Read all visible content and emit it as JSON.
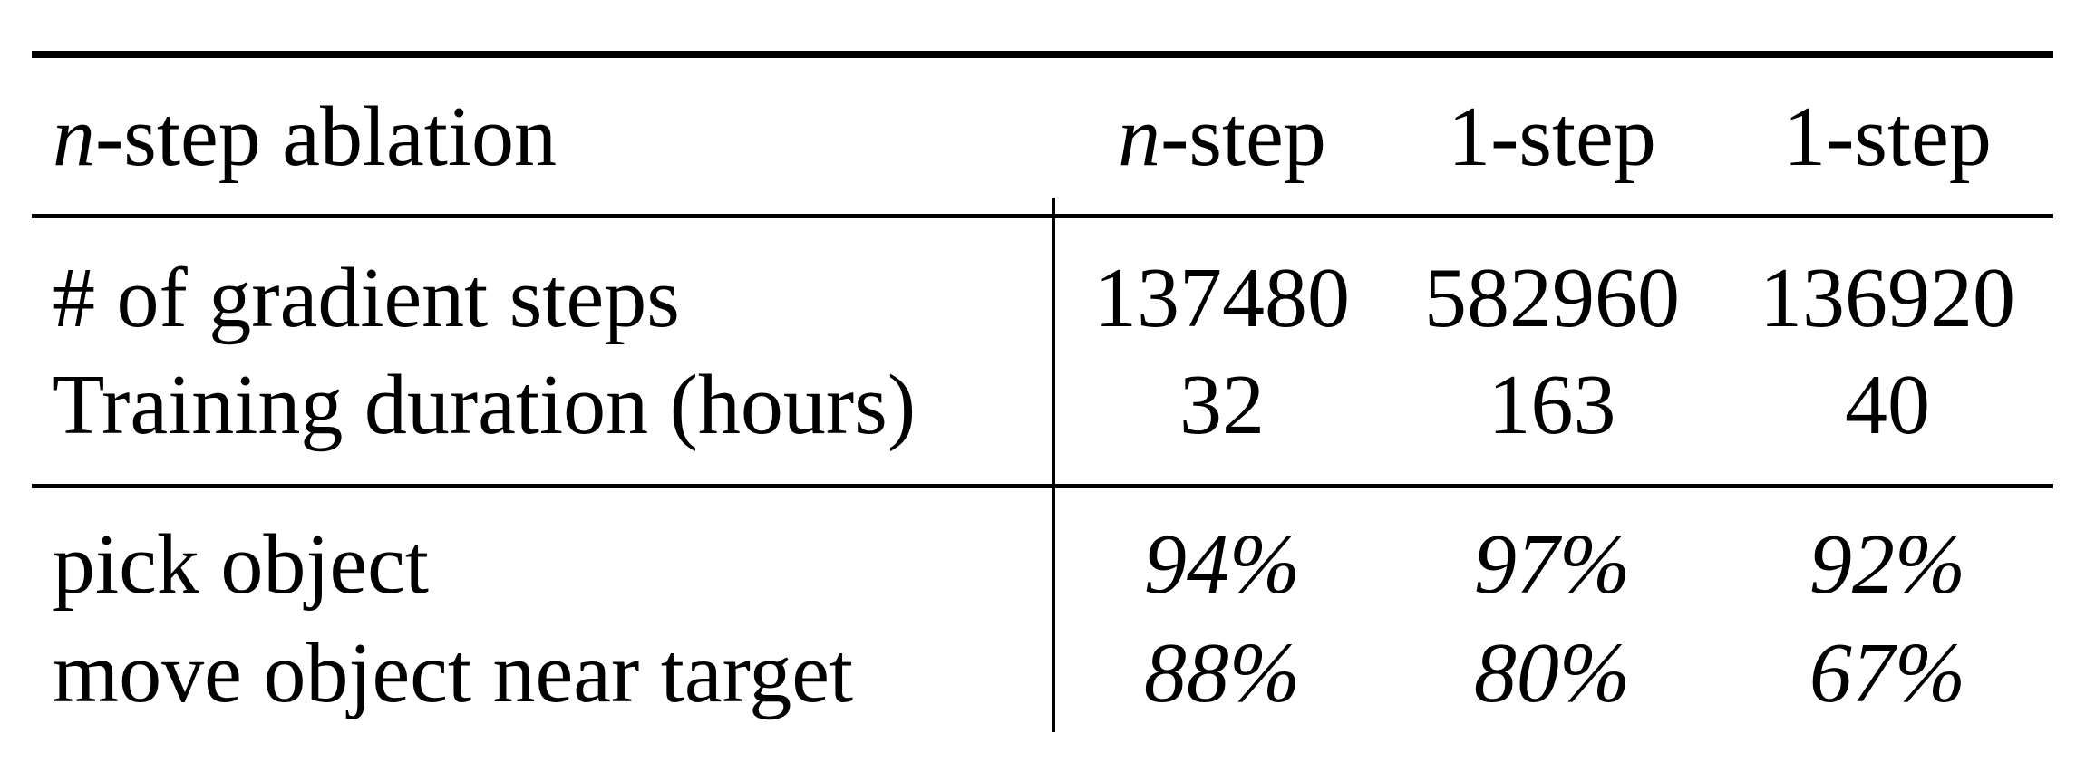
{
  "table": {
    "header": {
      "title_var": "n",
      "title_rest": "-step ablation",
      "columns": [
        {
          "var": "n",
          "rest": "-step"
        },
        {
          "var": "",
          "rest": "1-step"
        },
        {
          "var": "",
          "rest": "1-step"
        }
      ]
    },
    "rows": [
      {
        "label": "# of gradient steps",
        "values": [
          "137480",
          "582960",
          "136920"
        ]
      },
      {
        "label": "Training duration (hours)",
        "values": [
          "32",
          "163",
          "40"
        ]
      },
      {
        "label": "pick object",
        "values": [
          "94%",
          "97%",
          "92%"
        ]
      },
      {
        "label": "move object near target",
        "values": [
          "88%",
          "80%",
          "67%"
        ]
      }
    ]
  }
}
